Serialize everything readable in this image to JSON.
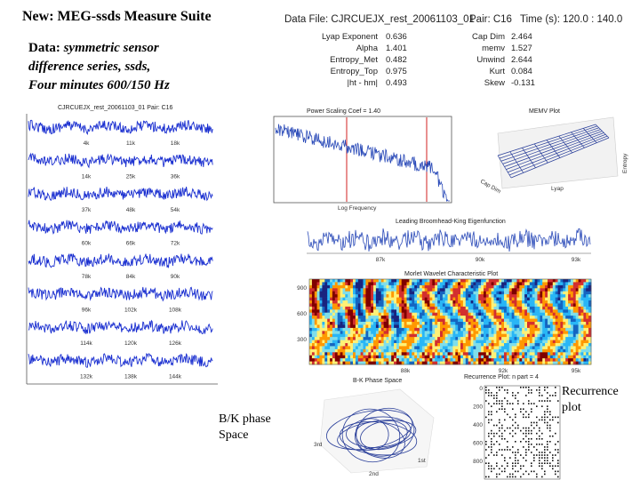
{
  "slide": {
    "title": "New: MEG-ssds Measure Suite",
    "description": {
      "label": "Data:",
      "lines": [
        "symmetric sensor",
        "difference series, ssds,",
        "Four minutes 600/150 Hz"
      ]
    },
    "header": {
      "file": "Data File: CJRCUEJX_rest_20061103_01",
      "pair": "Pair: C16",
      "time": "Time (s): 120.0 : 140.0"
    },
    "metrics_left": [
      [
        "Lyap Exponent",
        "0.636"
      ],
      [
        "Alpha",
        "1.401"
      ],
      [
        "Entropy_Met",
        "0.482"
      ],
      [
        "Entropy_Top",
        "0.975"
      ],
      [
        "|ht - hm|",
        "0.493"
      ]
    ],
    "metrics_right": [
      [
        "Cap Dim",
        "2.464"
      ],
      [
        "memv",
        "1.527"
      ],
      [
        "Unwind",
        "2.644"
      ],
      [
        "Kurt",
        "0.084"
      ],
      [
        "Skew",
        "-0.131"
      ]
    ],
    "timeseries": {
      "title": "CJRCUEJX_rest_20061103_01 Pair: C16",
      "row_ticks": [
        [
          "4k",
          "11k",
          "18k"
        ],
        [
          "14k",
          "25k",
          "36k"
        ],
        [
          "37k",
          "48k",
          "54k"
        ],
        [
          "60k",
          "66k",
          "72k"
        ],
        [
          "78k",
          "84k",
          "90k"
        ],
        [
          "96k",
          "102k",
          "108k"
        ],
        [
          "114k",
          "120k",
          "126k"
        ],
        [
          "132k",
          "138k",
          "144k"
        ]
      ]
    },
    "power": {
      "title": "Power Scaling Coef = 1.40",
      "xlabel": "Log Frequency"
    },
    "memv": {
      "title": "MEMV Plot",
      "labels": [
        "Cap Dim",
        "Lyap",
        "Entropy"
      ]
    },
    "eigen": {
      "title": "Leading Broomhead-King Eigenfunction",
      "xticks": [
        "87k",
        "90k",
        "93k"
      ]
    },
    "wavelet": {
      "title": "Morlet Wavelet Characteristic Plot",
      "yticks": [
        "900",
        "600",
        "300"
      ],
      "xticks": [
        "88k",
        "92k",
        "95k"
      ]
    },
    "phase": {
      "title": "B-K Phase Space",
      "labels": [
        "3rd",
        "2nd",
        "1st"
      ]
    },
    "recurrence": {
      "title": "Recurrence Plot: n part = 4",
      "yticks": [
        "0",
        "200",
        "400",
        "600",
        "800"
      ]
    },
    "caption_phase": "B/K phase Space",
    "caption_recurrence": "Recurrence plot"
  }
}
